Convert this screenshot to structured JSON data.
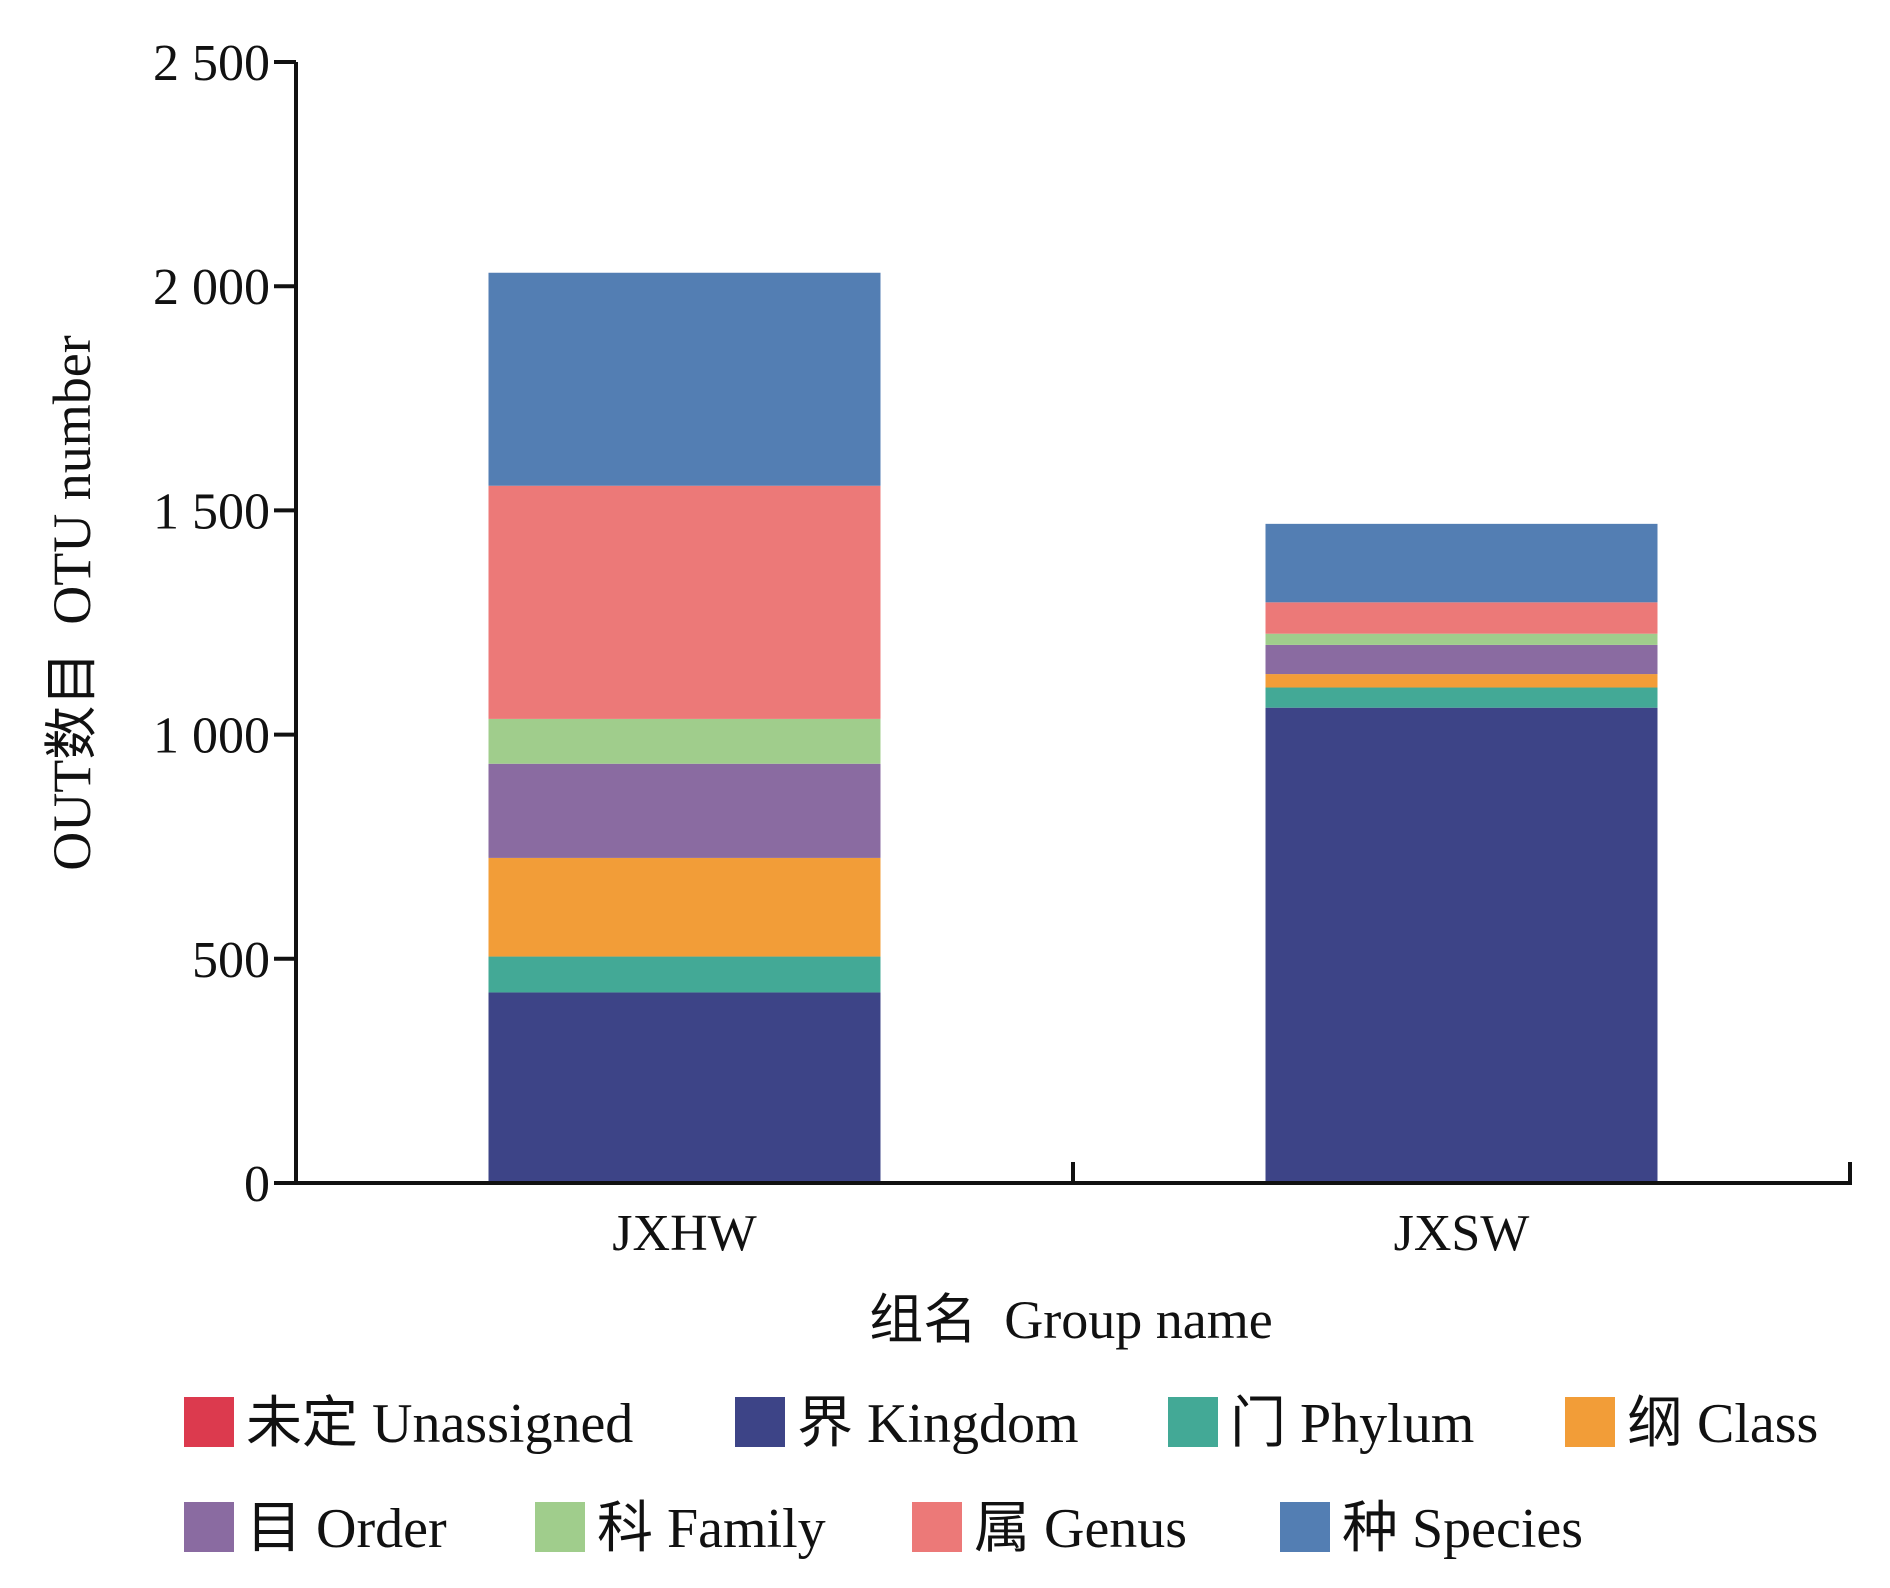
{
  "chart_data": {
    "type": "bar",
    "stacked": true,
    "title": "",
    "xlabel": "组名  Group name",
    "ylabel": "OUT数目  OTU number",
    "ylim": [
      0,
      2500
    ],
    "yticks": [
      0,
      500,
      1000,
      1500,
      2000,
      2500
    ],
    "ytick_labels": [
      "0",
      "500",
      "1 000",
      "1 500",
      "2 000",
      "2 500"
    ],
    "categories": [
      "JXHW",
      "JXSW"
    ],
    "series": [
      {
        "name": "未定  Unassigned",
        "color": "#DC3A4E",
        "values": [
          0,
          0
        ]
      },
      {
        "name": "界  Kingdom",
        "color": "#3D4487",
        "values": [
          425,
          1060
        ]
      },
      {
        "name": "门  Phylum",
        "color": "#43A996",
        "values": [
          80,
          45
        ]
      },
      {
        "name": "纲  Class",
        "color": "#F29D38",
        "values": [
          220,
          30
        ]
      },
      {
        "name": "目  Order",
        "color": "#8A6BA1",
        "values": [
          210,
          65
        ]
      },
      {
        "name": "科  Family",
        "color": "#A0CD8C",
        "values": [
          100,
          25
        ]
      },
      {
        "name": "属  Genus",
        "color": "#EC7978",
        "values": [
          520,
          70
        ]
      },
      {
        "name": "种  Species",
        "color": "#537EB3",
        "values": [
          475,
          175
        ]
      }
    ],
    "legend": {
      "position": "bottom",
      "columns": 4
    },
    "grid": false
  }
}
